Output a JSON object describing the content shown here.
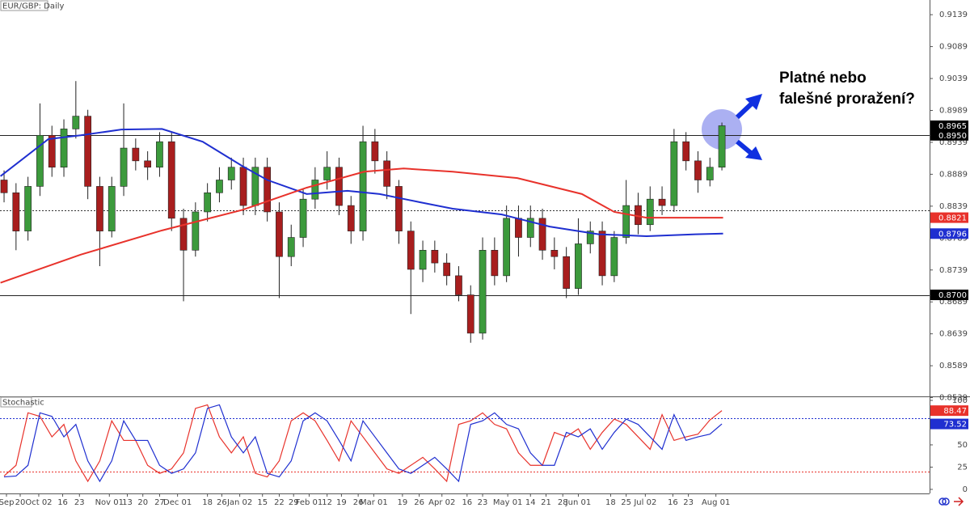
{
  "chart_data": [
    {
      "type": "candlestick",
      "title": "EUR/GBP: Daily",
      "xlim": [
        -0.34,
        77.36
      ],
      "ylim": [
        0.8541,
        0.9162
      ],
      "yticks": [
        0.9139,
        0.9089,
        0.9039,
        0.8989,
        0.8939,
        0.8889,
        0.8839,
        0.8789,
        0.8739,
        0.8689,
        0.8639,
        0.8589,
        0.8539
      ],
      "up_color": "#3c9a3c",
      "down_color": "#a81e1e",
      "open": [
        0.888,
        0.886,
        0.88,
        0.887,
        0.895,
        0.89,
        0.896,
        0.898,
        0.887,
        0.88,
        0.887,
        0.893,
        0.891,
        0.89,
        0.894,
        0.882,
        0.877,
        0.883,
        0.886,
        0.888,
        0.89,
        0.884,
        0.89,
        0.883,
        0.876,
        0.879,
        0.885,
        0.888,
        0.89,
        0.884,
        0.88,
        0.894,
        0.891,
        0.887,
        0.88,
        0.874,
        0.877,
        0.875,
        0.873,
        0.87,
        0.864,
        0.877,
        0.873,
        0.882,
        0.879,
        0.882,
        0.877,
        0.876,
        0.871,
        0.878,
        0.88,
        0.873,
        0.879,
        0.884,
        0.881,
        0.885,
        0.884,
        0.894,
        0.891,
        0.888,
        0.89
      ],
      "high": [
        0.8895,
        0.8875,
        0.8885,
        0.9,
        0.8965,
        0.8975,
        0.9035,
        0.899,
        0.8885,
        0.8885,
        0.9,
        0.8945,
        0.8925,
        0.8955,
        0.8955,
        0.8835,
        0.8845,
        0.8875,
        0.89,
        0.8915,
        0.8915,
        0.8915,
        0.8915,
        0.8845,
        0.881,
        0.8865,
        0.89,
        0.8925,
        0.8915,
        0.8855,
        0.8965,
        0.896,
        0.8925,
        0.888,
        0.8815,
        0.8785,
        0.8785,
        0.8765,
        0.8745,
        0.8715,
        0.879,
        0.879,
        0.884,
        0.884,
        0.884,
        0.8835,
        0.879,
        0.8775,
        0.882,
        0.8815,
        0.8815,
        0.88,
        0.888,
        0.886,
        0.887,
        0.887,
        0.896,
        0.8955,
        0.8925,
        0.8915,
        0.897
      ],
      "low": [
        0.8845,
        0.877,
        0.8785,
        0.8855,
        0.8885,
        0.8885,
        0.8945,
        0.885,
        0.8745,
        0.879,
        0.8855,
        0.8895,
        0.888,
        0.8885,
        0.88,
        0.869,
        0.876,
        0.8815,
        0.8845,
        0.8865,
        0.8825,
        0.8825,
        0.8815,
        0.8695,
        0.8745,
        0.8775,
        0.8835,
        0.8865,
        0.8825,
        0.878,
        0.8785,
        0.889,
        0.885,
        0.878,
        0.867,
        0.872,
        0.8735,
        0.8715,
        0.869,
        0.8625,
        0.863,
        0.8715,
        0.872,
        0.876,
        0.8775,
        0.8755,
        0.874,
        0.8695,
        0.87,
        0.8765,
        0.8715,
        0.872,
        0.878,
        0.8795,
        0.88,
        0.8825,
        0.883,
        0.8895,
        0.886,
        0.887,
        0.8895
      ],
      "close": [
        0.886,
        0.88,
        0.887,
        0.895,
        0.89,
        0.896,
        0.898,
        0.887,
        0.88,
        0.887,
        0.893,
        0.891,
        0.89,
        0.894,
        0.882,
        0.877,
        0.883,
        0.886,
        0.888,
        0.89,
        0.884,
        0.89,
        0.883,
        0.876,
        0.879,
        0.885,
        0.888,
        0.89,
        0.884,
        0.88,
        0.894,
        0.891,
        0.887,
        0.88,
        0.874,
        0.877,
        0.875,
        0.873,
        0.87,
        0.864,
        0.877,
        0.873,
        0.882,
        0.879,
        0.882,
        0.877,
        0.876,
        0.871,
        0.878,
        0.88,
        0.873,
        0.879,
        0.884,
        0.881,
        0.885,
        0.884,
        0.894,
        0.891,
        0.888,
        0.89,
        0.8965
      ],
      "overlays": [
        {
          "color": "#1f2fd0",
          "x": [
            -0.3,
            3.7,
            6.4,
            9.8,
            13.2,
            16.6,
            19.9,
            22.0,
            25.3,
            28.7,
            31.4,
            34.8,
            37.5,
            41.6,
            45.6,
            49.7,
            53.7,
            57.8,
            60.1
          ],
          "values": [
            0.8886,
            0.8944,
            0.895,
            0.8959,
            0.896,
            0.894,
            0.8902,
            0.888,
            0.8858,
            0.8863,
            0.8858,
            0.8845,
            0.8835,
            0.8826,
            0.8807,
            0.8795,
            0.8792,
            0.8795,
            0.8796
          ]
        },
        {
          "color": "#e8322b",
          "x": [
            -0.3,
            6.4,
            13.2,
            19.9,
            25.3,
            30.1,
            33.4,
            37.5,
            42.9,
            48.3,
            51.0,
            53.7,
            60.1
          ],
          "values": [
            0.8719,
            0.8763,
            0.8801,
            0.8833,
            0.8868,
            0.8893,
            0.8898,
            0.8893,
            0.8883,
            0.8858,
            0.883,
            0.8821,
            0.8821
          ]
        }
      ],
      "levels": [
        {
          "value": 0.895,
          "label": "0.8950"
        },
        {
          "value": 0.87,
          "label": "0.8700"
        }
      ],
      "dashed_levels": [
        0.8832
      ],
      "annotation": [
        "Platné nebo",
        "falešné proražení?"
      ]
    },
    {
      "type": "line",
      "title": "Stochastic",
      "xlim": [
        -0.34,
        77.36
      ],
      "ylim": [
        -6.4,
        104.5
      ],
      "yticks": [
        100,
        75,
        50,
        25,
        0
      ],
      "xticks": [
        {
          "value": 0.2,
          "label": "Sep"
        },
        {
          "value": 1.35,
          "label": "20"
        },
        {
          "value": 2.9,
          "label": "Oct 02"
        },
        {
          "value": 4.9,
          "label": "16"
        },
        {
          "value": 6.3,
          "label": "23"
        },
        {
          "value": 8.8,
          "label": "Nov 01"
        },
        {
          "value": 10.3,
          "label": "13"
        },
        {
          "value": 11.6,
          "label": "20"
        },
        {
          "value": 13.0,
          "label": "27"
        },
        {
          "value": 14.5,
          "label": "Dec 01"
        },
        {
          "value": 17.0,
          "label": "18"
        },
        {
          "value": 18.2,
          "label": "26"
        },
        {
          "value": 19.7,
          "label": "Jan 02"
        },
        {
          "value": 21.6,
          "label": "15"
        },
        {
          "value": 23.0,
          "label": "22"
        },
        {
          "value": 24.2,
          "label": "29"
        },
        {
          "value": 25.5,
          "label": "Feb 01"
        },
        {
          "value": 27.0,
          "label": "12"
        },
        {
          "value": 28.2,
          "label": "19"
        },
        {
          "value": 29.6,
          "label": "26"
        },
        {
          "value": 30.9,
          "label": "Mar 01"
        },
        {
          "value": 33.3,
          "label": "19"
        },
        {
          "value": 34.7,
          "label": "26"
        },
        {
          "value": 36.6,
          "label": "Apr 02"
        },
        {
          "value": 38.7,
          "label": "16"
        },
        {
          "value": 40.0,
          "label": "23"
        },
        {
          "value": 42.1,
          "label": "May 01"
        },
        {
          "value": 44.0,
          "label": "14"
        },
        {
          "value": 45.3,
          "label": "21"
        },
        {
          "value": 46.7,
          "label": "28"
        },
        {
          "value": 48.0,
          "label": "Jun 01"
        },
        {
          "value": 50.7,
          "label": "18"
        },
        {
          "value": 52.0,
          "label": "25"
        },
        {
          "value": 53.6,
          "label": "Jul 02"
        },
        {
          "value": 55.9,
          "label": "16"
        },
        {
          "value": 57.2,
          "label": "23"
        },
        {
          "value": 59.5,
          "label": "Aug 01"
        }
      ],
      "series": [
        {
          "color": "#e8322b",
          "values": [
            15,
            27,
            86,
            82,
            59,
            73,
            32,
            9,
            32,
            77,
            55,
            55,
            27,
            18,
            23,
            41,
            91,
            95,
            59,
            41,
            59,
            18,
            14,
            32,
            77,
            86,
            77,
            55,
            32,
            77,
            59,
            41,
            23,
            18,
            27,
            36,
            23,
            9,
            73,
            77,
            86,
            73,
            68,
            41,
            27,
            27,
            64,
            59,
            68,
            45,
            64,
            79,
            73,
            59,
            45,
            84,
            55,
            59,
            62,
            78,
            88.47
          ]
        },
        {
          "color": "#1f2fd0",
          "values": [
            14,
            15,
            27,
            86,
            82,
            59,
            73,
            32,
            9,
            32,
            77,
            55,
            55,
            27,
            18,
            23,
            41,
            91,
            95,
            59,
            41,
            59,
            18,
            14,
            32,
            77,
            86,
            77,
            55,
            32,
            77,
            59,
            41,
            23,
            18,
            27,
            36,
            23,
            9,
            73,
            77,
            86,
            73,
            68,
            41,
            27,
            27,
            64,
            59,
            68,
            45,
            64,
            79,
            73,
            59,
            45,
            84,
            55,
            59,
            62,
            73.52
          ]
        }
      ],
      "levels": [
        {
          "value": 80,
          "color": "#1f2fd0"
        },
        {
          "value": 20,
          "color": "#e8322b"
        }
      ]
    }
  ]
}
